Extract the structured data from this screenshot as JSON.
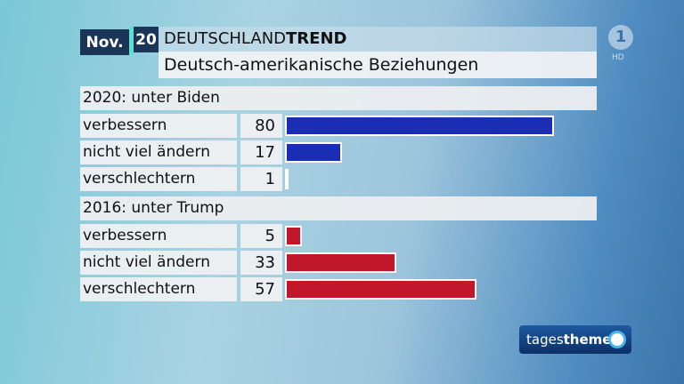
{
  "header": {
    "month": "Nov.",
    "year": "20",
    "title_light": "DEUTSCHLAND",
    "title_bold": "TREND",
    "subtitle": "Deutsch-amerikanische Beziehungen"
  },
  "logos": {
    "channel": "1",
    "hd": "HD",
    "show_light": "tages",
    "show_bold": "themen"
  },
  "colors": {
    "biden": "#1a2db5",
    "trump": "#c0182a",
    "navy": "#1b3558"
  },
  "chart_data": {
    "type": "bar",
    "title": "Deutsch-amerikanische Beziehungen",
    "xlim": [
      0,
      100
    ],
    "groups": [
      {
        "name": "2020: unter Biden",
        "color": "#1a2db5",
        "categories": [
          "verbessern",
          "nicht viel ändern",
          "verschlechtern"
        ],
        "values": [
          80,
          17,
          1
        ]
      },
      {
        "name": "2016: unter Trump",
        "color": "#c0182a",
        "categories": [
          "verbessern",
          "nicht viel ändern",
          "verschlechtern"
        ],
        "values": [
          5,
          33,
          57
        ]
      }
    ]
  }
}
